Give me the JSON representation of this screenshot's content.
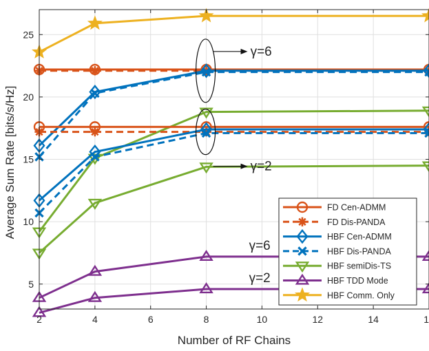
{
  "chart_data": {
    "type": "line",
    "title": "",
    "xlabel": "Number of RF Chains",
    "ylabel": "Average Sum Rate [bits/s/Hz]",
    "xlim": [
      2,
      16
    ],
    "ylim": [
      3,
      27
    ],
    "xticks": [
      2,
      4,
      6,
      8,
      10,
      12,
      14,
      16
    ],
    "yticks": [
      5,
      10,
      15,
      20,
      25
    ],
    "grid": true,
    "legend_position": "bottom-right",
    "x": [
      2,
      4,
      8,
      16
    ],
    "series": [
      {
        "name": "FD Cen-ADMM",
        "group": "γ=6",
        "color": "#D95319",
        "dash": "solid",
        "marker": "circle",
        "values": [
          22.2,
          22.2,
          22.2,
          22.2
        ]
      },
      {
        "name": "FD Dis-PANDA",
        "group": "γ=6",
        "color": "#D95319",
        "dash": "dashed",
        "marker": "asterisk",
        "values": [
          22.1,
          22.1,
          22.1,
          22.1
        ]
      },
      {
        "name": "HBF Cen-ADMM",
        "group": "γ=6",
        "color": "#0072BD",
        "dash": "solid",
        "marker": "diamond",
        "values": [
          16.1,
          20.4,
          22.1,
          22.1
        ]
      },
      {
        "name": "HBF Dis-PANDA",
        "group": "γ=6",
        "color": "#0072BD",
        "dash": "dashed",
        "marker": "x",
        "values": [
          15.2,
          20.3,
          22.0,
          22.0
        ]
      },
      {
        "name": "HBF semiDis-TS",
        "group": "γ=6",
        "color": "#77AC30",
        "dash": "solid",
        "marker": "triangle-down",
        "values": [
          9.2,
          15.1,
          18.8,
          18.9
        ]
      },
      {
        "name": "HBF TDD Mode",
        "group": "γ=6",
        "color": "#7E2F8E",
        "dash": "solid",
        "marker": "triangle-up",
        "values": [
          3.9,
          6.0,
          7.2,
          7.2
        ]
      },
      {
        "name": "HBF Comm. Only",
        "group": "γ=6",
        "color": "#EDB120",
        "dash": "solid",
        "marker": "star",
        "values": [
          23.6,
          25.9,
          26.5,
          26.5
        ]
      },
      {
        "name": "FD Cen-ADMM",
        "group": "γ=2",
        "color": "#D95319",
        "dash": "solid",
        "marker": "circle",
        "values": [
          17.6,
          17.6,
          17.6,
          17.6
        ]
      },
      {
        "name": "FD Dis-PANDA",
        "group": "γ=2",
        "color": "#D95319",
        "dash": "dashed",
        "marker": "asterisk",
        "values": [
          17.2,
          17.2,
          17.2,
          17.2
        ]
      },
      {
        "name": "HBF Cen-ADMM",
        "group": "γ=2",
        "color": "#0072BD",
        "dash": "solid",
        "marker": "diamond",
        "values": [
          11.7,
          15.6,
          17.4,
          17.4
        ]
      },
      {
        "name": "HBF Dis-PANDA",
        "group": "γ=2",
        "color": "#0072BD",
        "dash": "dashed",
        "marker": "x",
        "values": [
          10.7,
          15.2,
          17.1,
          17.1
        ]
      },
      {
        "name": "HBF semiDis-TS",
        "group": "γ=2",
        "color": "#77AC30",
        "dash": "solid",
        "marker": "triangle-down",
        "values": [
          7.5,
          11.5,
          14.4,
          14.5
        ]
      },
      {
        "name": "HBF TDD Mode",
        "group": "γ=2",
        "color": "#7E2F8E",
        "dash": "solid",
        "marker": "triangle-up",
        "values": [
          2.7,
          3.9,
          4.6,
          4.6
        ]
      }
    ],
    "legend": [
      {
        "label": "FD Cen-ADMM",
        "color": "#D95319",
        "dash": "solid",
        "marker": "circle"
      },
      {
        "label": "FD Dis-PANDA",
        "color": "#D95319",
        "dash": "dashed",
        "marker": "asterisk"
      },
      {
        "label": "HBF Cen-ADMM",
        "color": "#0072BD",
        "dash": "solid",
        "marker": "diamond"
      },
      {
        "label": "HBF Dis-PANDA",
        "color": "#0072BD",
        "dash": "dashed",
        "marker": "x"
      },
      {
        "label": "HBF semiDis-TS",
        "color": "#77AC30",
        "dash": "solid",
        "marker": "triangle-down"
      },
      {
        "label": "HBF TDD Mode",
        "color": "#7E2F8E",
        "dash": "solid",
        "marker": "triangle-up"
      },
      {
        "label": "HBF Comm. Only",
        "color": "#EDB120",
        "dash": "solid",
        "marker": "star"
      }
    ],
    "annotations": {
      "ellipse_gamma6": {
        "text": "γ=6",
        "x": 8,
        "y": 22.1
      },
      "ellipse_gamma2": {
        "text": "γ=2",
        "x": 8,
        "y": 17.2
      },
      "tdd_gamma6": {
        "text": "γ=6",
        "x": 8,
        "y": 7.2
      },
      "tdd_gamma2": {
        "text": "γ=2",
        "x": 8,
        "y": 4.6
      }
    }
  }
}
